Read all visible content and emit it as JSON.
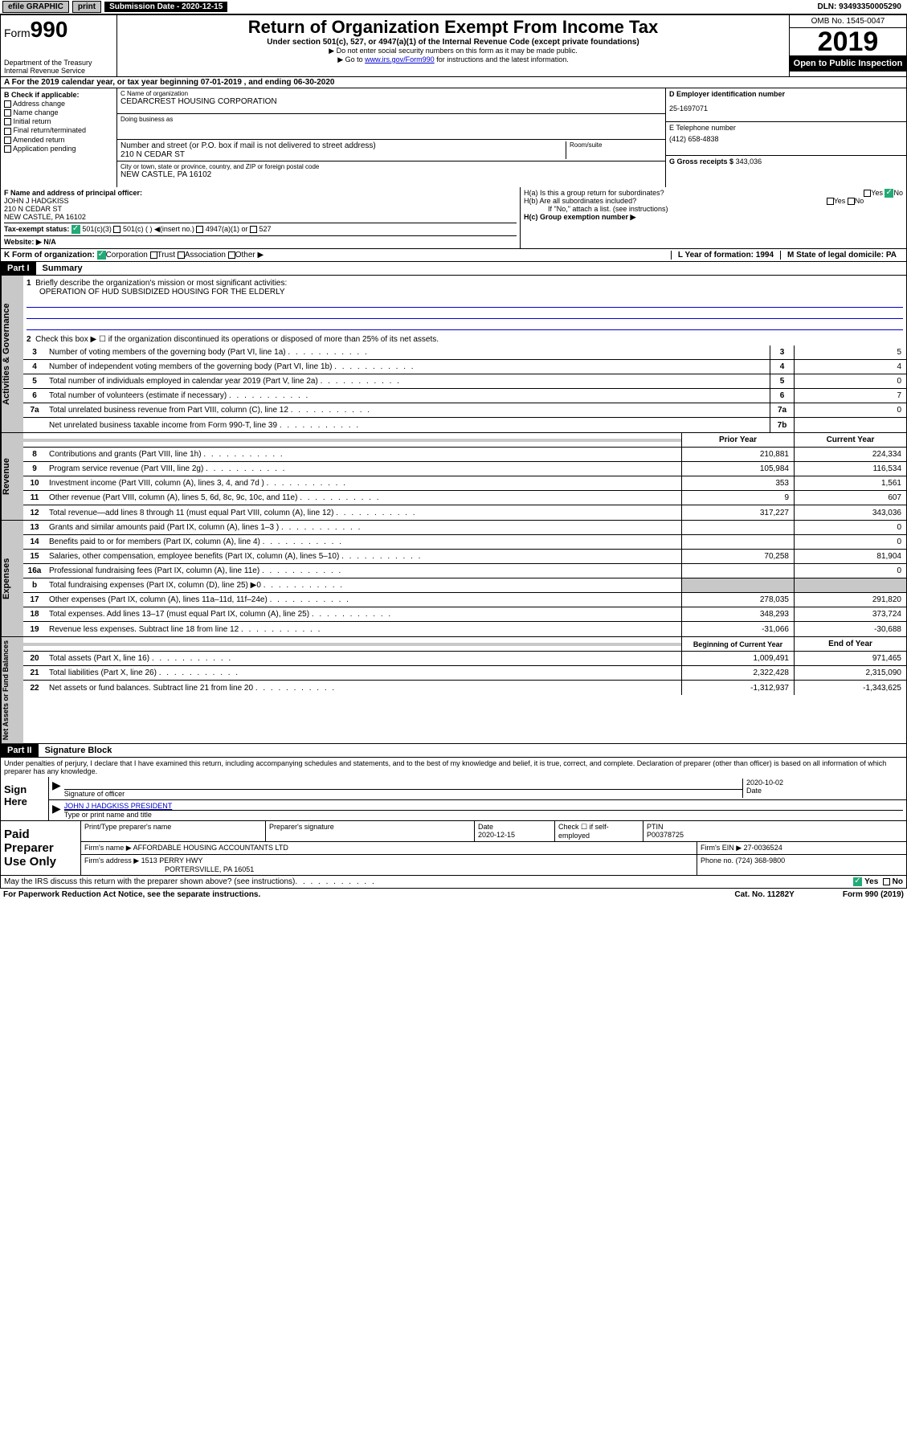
{
  "topbar": {
    "efile": "efile GRAPHIC",
    "print": "print",
    "subdate_lbl": "Submission Date - 2020-12-15",
    "dln": "DLN: 93493350005290"
  },
  "header": {
    "form_prefix": "Form",
    "form_num": "990",
    "dept": "Department of the Treasury\nInternal Revenue Service",
    "title": "Return of Organization Exempt From Income Tax",
    "sub": "Under section 501(c), 527, or 4947(a)(1) of the Internal Revenue Code (except private foundations)",
    "note1": "▶ Do not enter social security numbers on this form as it may be made public.",
    "note2_pre": "▶ Go to ",
    "note2_link": "www.irs.gov/Form990",
    "note2_post": " for instructions and the latest information.",
    "omb": "OMB No. 1545-0047",
    "year": "2019",
    "open": "Open to Public Inspection"
  },
  "rowA": "A For the 2019 calendar year, or tax year beginning 07-01-2019    , and ending 06-30-2020",
  "colB": {
    "lbl": "B Check if applicable:",
    "items": [
      "Address change",
      "Name change",
      "Initial return",
      "Final return/terminated",
      "Amended return",
      "Application pending"
    ]
  },
  "colC": {
    "name_lbl": "C Name of organization",
    "name": "CEDARCREST HOUSING CORPORATION",
    "dba_lbl": "Doing business as",
    "addr_lbl": "Number and street (or P.O. box if mail is not delivered to street address)",
    "addr": "210 N CEDAR ST",
    "room_lbl": "Room/suite",
    "city_lbl": "City or town, state or province, country, and ZIP or foreign postal code",
    "city": "NEW CASTLE, PA  16102"
  },
  "colD": {
    "ein_lbl": "D Employer identification number",
    "ein": "25-1697071",
    "tel_lbl": "E Telephone number",
    "tel": "(412) 658-4838",
    "gross_lbl": "G Gross receipts $",
    "gross": "343,036"
  },
  "rowF": {
    "lbl": "F  Name and address of principal officer:",
    "name": "JOHN J HADGKISS",
    "addr1": "210 N CEDAR ST",
    "addr2": "NEW CASTLE, PA  16102"
  },
  "rowH": {
    "a": "H(a)  Is this a group return for subordinates?",
    "b": "H(b)  Are all subordinates included?",
    "b_note": "If \"No,\" attach a list. (see instructions)",
    "c": "H(c)  Group exemption number ▶"
  },
  "rowI": {
    "lbl": "Tax-exempt status:",
    "opt1": "501(c)(3)",
    "opt2": "501(c) (   ) ◀(insert no.)",
    "opt3": "4947(a)(1) or",
    "opt4": "527"
  },
  "rowJ": "Website: ▶  N/A",
  "rowK": {
    "lbl": "K Form of organization:",
    "opts": [
      "Corporation",
      "Trust",
      "Association",
      "Other ▶"
    ]
  },
  "rowL": "L Year of formation: 1994",
  "rowM": "M State of legal domicile: PA",
  "part1": {
    "hdr": "Part I",
    "title": "Summary",
    "vtab1": "Activities & Governance",
    "vtab2": "Revenue",
    "vtab3": "Expenses",
    "vtab4": "Net Assets or Fund Balances",
    "q1": "Briefly describe the organization's mission or most significant activities:",
    "mission": "OPERATION OF HUD SUBSIDIZED HOUSING FOR THE ELDERLY",
    "q2": "Check this box ▶ ☐  if the organization discontinued its operations or disposed of more than 25% of its net assets.",
    "lines_gov": [
      {
        "n": "3",
        "d": "Number of voting members of the governing body (Part VI, line 1a)",
        "box": "3",
        "v": "5"
      },
      {
        "n": "4",
        "d": "Number of independent voting members of the governing body (Part VI, line 1b)",
        "box": "4",
        "v": "4"
      },
      {
        "n": "5",
        "d": "Total number of individuals employed in calendar year 2019 (Part V, line 2a)",
        "box": "5",
        "v": "0"
      },
      {
        "n": "6",
        "d": "Total number of volunteers (estimate if necessary)",
        "box": "6",
        "v": "7"
      },
      {
        "n": "7a",
        "d": "Total unrelated business revenue from Part VIII, column (C), line 12",
        "box": "7a",
        "v": "0"
      },
      {
        "n": "",
        "d": "Net unrelated business taxable income from Form 990-T, line 39",
        "box": "7b",
        "v": ""
      }
    ],
    "col_prior": "Prior Year",
    "col_curr": "Current Year",
    "lines_rev": [
      {
        "n": "8",
        "d": "Contributions and grants (Part VIII, line 1h)",
        "p": "210,881",
        "c": "224,334"
      },
      {
        "n": "9",
        "d": "Program service revenue (Part VIII, line 2g)",
        "p": "105,984",
        "c": "116,534"
      },
      {
        "n": "10",
        "d": "Investment income (Part VIII, column (A), lines 3, 4, and 7d )",
        "p": "353",
        "c": "1,561"
      },
      {
        "n": "11",
        "d": "Other revenue (Part VIII, column (A), lines 5, 6d, 8c, 9c, 10c, and 11e)",
        "p": "9",
        "c": "607"
      },
      {
        "n": "12",
        "d": "Total revenue—add lines 8 through 11 (must equal Part VIII, column (A), line 12)",
        "p": "317,227",
        "c": "343,036"
      }
    ],
    "lines_exp": [
      {
        "n": "13",
        "d": "Grants and similar amounts paid (Part IX, column (A), lines 1–3 )",
        "p": "",
        "c": "0"
      },
      {
        "n": "14",
        "d": "Benefits paid to or for members (Part IX, column (A), line 4)",
        "p": "",
        "c": "0"
      },
      {
        "n": "15",
        "d": "Salaries, other compensation, employee benefits (Part IX, column (A), lines 5–10)",
        "p": "70,258",
        "c": "81,904"
      },
      {
        "n": "16a",
        "d": "Professional fundraising fees (Part IX, column (A), line 11e)",
        "p": "",
        "c": "0"
      },
      {
        "n": "b",
        "d": "Total fundraising expenses (Part IX, column (D), line 25) ▶0",
        "p": "",
        "c": "",
        "shade": true
      },
      {
        "n": "17",
        "d": "Other expenses (Part IX, column (A), lines 11a–11d, 11f–24e)",
        "p": "278,035",
        "c": "291,820"
      },
      {
        "n": "18",
        "d": "Total expenses. Add lines 13–17 (must equal Part IX, column (A), line 25)",
        "p": "348,293",
        "c": "373,724"
      },
      {
        "n": "19",
        "d": "Revenue less expenses. Subtract line 18 from line 12",
        "p": "-31,066",
        "c": "-30,688"
      }
    ],
    "col_beg": "Beginning of Current Year",
    "col_end": "End of Year",
    "lines_net": [
      {
        "n": "20",
        "d": "Total assets (Part X, line 16)",
        "p": "1,009,491",
        "c": "971,465"
      },
      {
        "n": "21",
        "d": "Total liabilities (Part X, line 26)",
        "p": "2,322,428",
        "c": "2,315,090"
      },
      {
        "n": "22",
        "d": "Net assets or fund balances. Subtract line 21 from line 20",
        "p": "-1,312,937",
        "c": "-1,343,625"
      }
    ]
  },
  "part2": {
    "hdr": "Part II",
    "title": "Signature Block",
    "decl": "Under penalties of perjury, I declare that I have examined this return, including accompanying schedules and statements, and to the best of my knowledge and belief, it is true, correct, and complete. Declaration of preparer (other than officer) is based on all information of which preparer has any knowledge.",
    "sign_here": "Sign Here",
    "sig_off": "Signature of officer",
    "sig_date": "2020-10-02",
    "sig_date_lbl": "Date",
    "sig_name": "JOHN J HADGKISS PRESIDENT",
    "sig_name_lbl": "Type or print name and title",
    "paid": "Paid Preparer Use Only",
    "prep_name_lbl": "Print/Type preparer's name",
    "prep_sig_lbl": "Preparer's signature",
    "prep_date_lbl": "Date",
    "prep_date": "2020-12-15",
    "prep_check": "Check ☐ if self-employed",
    "ptin_lbl": "PTIN",
    "ptin": "P00378725",
    "firm_name_lbl": "Firm's name    ▶",
    "firm_name": "AFFORDABLE HOUSING ACCOUNTANTS LTD",
    "firm_ein_lbl": "Firm's EIN ▶",
    "firm_ein": "27-0036524",
    "firm_addr_lbl": "Firm's address ▶",
    "firm_addr": "1513 PERRY HWY",
    "firm_city": "PORTERSVILLE, PA  16051",
    "firm_phone_lbl": "Phone no.",
    "firm_phone": "(724) 368-9800"
  },
  "footer": {
    "discuss": "May the IRS discuss this return with the preparer shown above? (see instructions)",
    "yes": "Yes",
    "no": "No",
    "paperwork": "For Paperwork Reduction Act Notice, see the separate instructions.",
    "cat": "Cat. No. 11282Y",
    "form": "Form 990 (2019)"
  }
}
